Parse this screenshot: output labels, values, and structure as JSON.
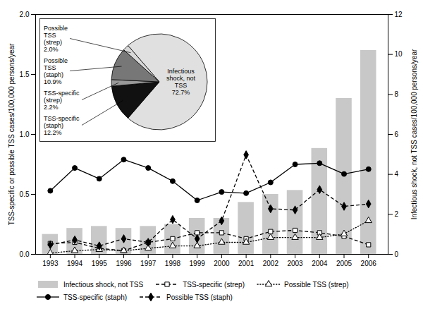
{
  "chart_data": [
    {
      "type": "bar",
      "x": [
        1993,
        1994,
        1995,
        1996,
        1997,
        1998,
        1999,
        2000,
        2001,
        2002,
        2003,
        2004,
        2005,
        2006
      ],
      "xlim": [
        1992.4,
        2006.8
      ],
      "xticks": [
        1993,
        1994,
        1995,
        1996,
        1997,
        1998,
        1999,
        2000,
        2001,
        2002,
        2003,
        2004,
        2005,
        2006
      ],
      "ylabel": "TSS-specific or possible TSS cases/100,000 persons/year",
      "ylim": [
        0,
        2
      ],
      "yticks": [
        {
          "value": 0,
          "label": "0.0"
        },
        0.5,
        {
          "value": 1,
          "label": "1.0"
        },
        1.5,
        {
          "value": 2,
          "label": "2.0"
        }
      ],
      "y2label": "Infectious shock, not TSS cases/100,000 persons/year",
      "y2lim": [
        0,
        12
      ],
      "y2ticks": [
        0,
        2,
        4,
        6,
        8,
        10,
        12
      ],
      "grid": false,
      "series": [
        {
          "name": "Infectious shock, not TSS",
          "type": "bar",
          "axis": "y2",
          "color": "#c8c8c8",
          "values": [
            1.0,
            1.3,
            1.4,
            1.3,
            1.4,
            1.5,
            1.8,
            1.8,
            2.6,
            3.0,
            3.2,
            5.3,
            7.8,
            10.2
          ]
        },
        {
          "name": "TSS-specific (strep)",
          "type": "line",
          "color": "black",
          "line_style": "dashed",
          "marker": "square-open",
          "values": [
            0.09,
            0.1,
            0.05,
            0.03,
            0.1,
            0.13,
            0.18,
            0.18,
            0.13,
            0.19,
            0.2,
            0.18,
            0.15,
            0.08
          ]
        },
        {
          "name": "Possible TSS (strep)",
          "type": "line",
          "color": "black",
          "line_style": "dotted",
          "marker": "triangle-open",
          "values": [
            0.01,
            0.03,
            0.04,
            0.03,
            0.05,
            0.07,
            0.07,
            0.1,
            0.1,
            0.14,
            0.14,
            0.14,
            0.17,
            0.28
          ]
        },
        {
          "name": "TSS-specific (staph)",
          "type": "line",
          "color": "black",
          "line_style": "solid",
          "marker": "circle",
          "values": [
            0.53,
            0.72,
            0.63,
            0.79,
            0.72,
            0.61,
            0.45,
            0.52,
            0.51,
            0.6,
            0.75,
            0.76,
            0.67,
            0.71
          ]
        },
        {
          "name": "Possible TSS (staph)",
          "type": "line",
          "color": "black",
          "line_style": "dashed",
          "marker": "diamond",
          "values": [
            0.08,
            0.12,
            0.07,
            0.13,
            0.1,
            0.29,
            0.13,
            0.28,
            0.83,
            0.38,
            0.37,
            0.54,
            0.4,
            0.42
          ]
        }
      ]
    },
    {
      "type": "pie",
      "categories": [
        "Infectious\nshock, not\nTSS",
        "TSS-specific\n(staph)",
        "TSS-specific\n(strep)",
        "Possible\nTSS\n(staph)",
        "Possible\nTSS\n(strep)"
      ],
      "values": [
        72.7,
        12.2,
        2.2,
        10.9,
        2.0
      ],
      "value_labels": [
        "72.7%",
        "12.2%",
        "2.2%",
        "10.9%",
        "2.0%"
      ],
      "data_labels": true,
      "colors": [
        "#e0e0e0",
        "#111111",
        "#999999",
        "#777777",
        "#d8d8d8"
      ]
    }
  ]
}
